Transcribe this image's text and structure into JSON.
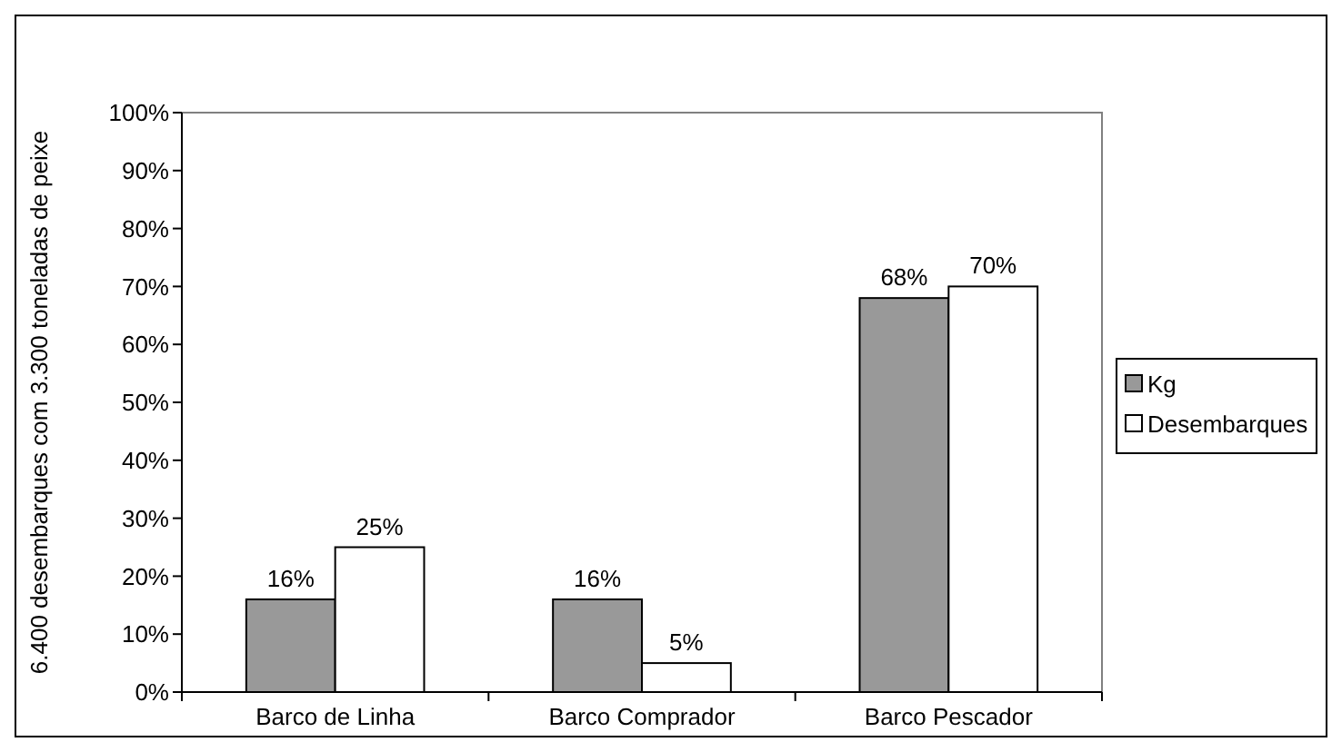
{
  "chart_data": {
    "type": "bar",
    "ylabel": "6.400 desembarques com 3.300 toneladas de peixe",
    "categories": [
      "Barco de Linha",
      "Barco Comprador",
      "Barco Pescador"
    ],
    "series": [
      {
        "name": "Kg",
        "color": "#999999",
        "values": [
          16,
          16,
          68
        ],
        "value_labels": [
          "16%",
          "16%",
          "68%"
        ]
      },
      {
        "name": "Desembarques",
        "color": "#ffffff",
        "values": [
          25,
          5,
          70
        ],
        "value_labels": [
          "25%",
          "5%",
          "70%"
        ]
      }
    ],
    "ylim": [
      0,
      100
    ],
    "yticks": [
      {
        "value": 0,
        "label": "0%"
      },
      {
        "value": 10,
        "label": "10%"
      },
      {
        "value": 20,
        "label": "20%"
      },
      {
        "value": 30,
        "label": "30%"
      },
      {
        "value": 40,
        "label": "40%"
      },
      {
        "value": 50,
        "label": "50%"
      },
      {
        "value": 60,
        "label": "60%"
      },
      {
        "value": 70,
        "label": "70%"
      },
      {
        "value": 80,
        "label": "80%"
      },
      {
        "value": 90,
        "label": "90%"
      },
      {
        "value": 100,
        "label": "100%"
      }
    ],
    "legend": "right"
  }
}
